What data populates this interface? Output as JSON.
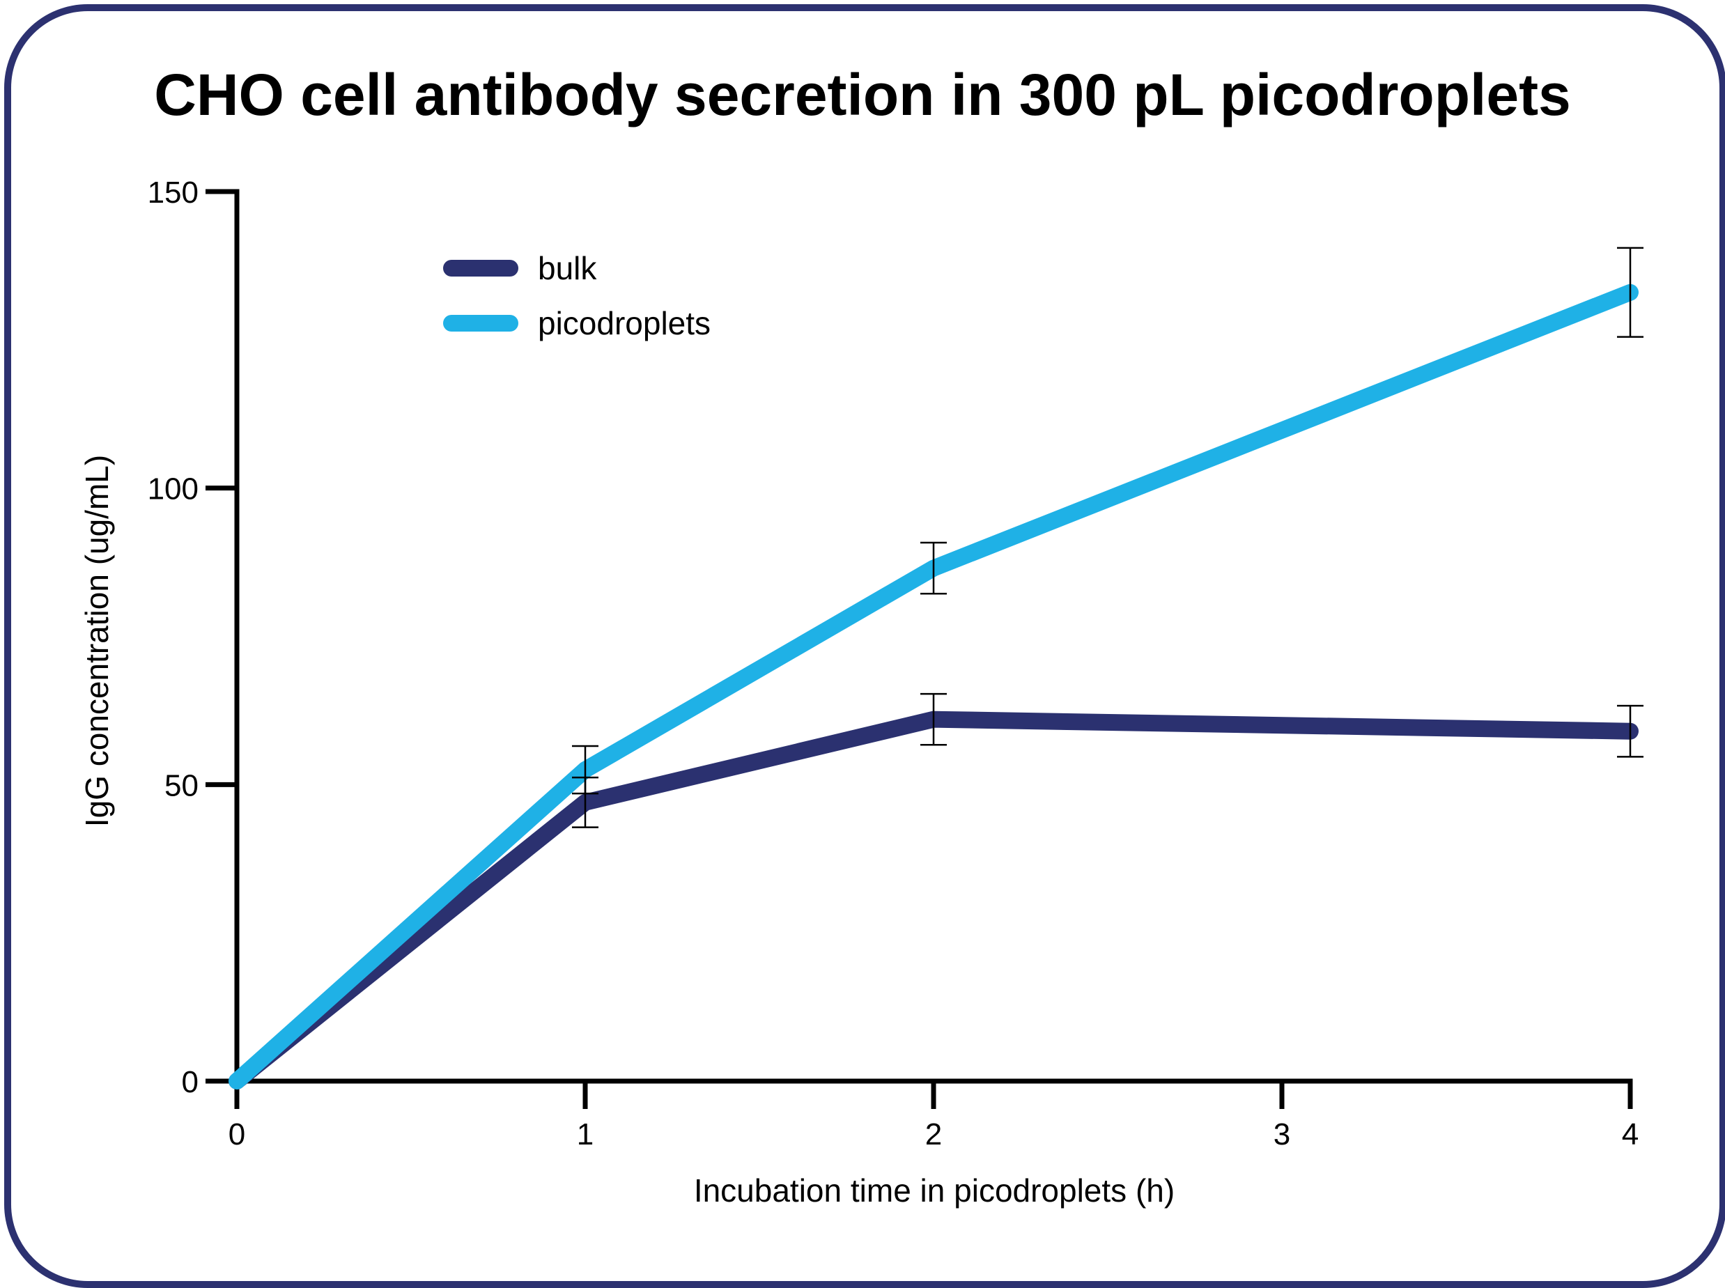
{
  "chart_data": {
    "type": "line",
    "title": "CHO cell antibody secretion in 300 pL picodroplets",
    "xlabel": "Incubation time in picodroplets (h)",
    "ylabel": "IgG concentration (ug/mL)",
    "xlim": [
      0,
      4
    ],
    "ylim": [
      0,
      150
    ],
    "xticks": [
      "0",
      "1",
      "2",
      "3",
      "4"
    ],
    "yticks": [
      "0",
      "50",
      "100",
      "150"
    ],
    "grid": false,
    "legend_position": "top-left",
    "series": [
      {
        "name": "bulk",
        "color": "#2b3170",
        "x": [
          0,
          1,
          2,
          4
        ],
        "y": [
          0,
          47,
          61,
          59
        ],
        "error": [
          0,
          4.2,
          4.3,
          4.3
        ]
      },
      {
        "name": "picodroplets",
        "color": "#1fb1e6",
        "x": [
          0,
          1,
          2,
          4
        ],
        "y": [
          0,
          52.5,
          86.5,
          133
        ],
        "error": [
          0,
          4,
          4.3,
          7.5
        ]
      }
    ]
  },
  "frame_color": "#2c3170"
}
